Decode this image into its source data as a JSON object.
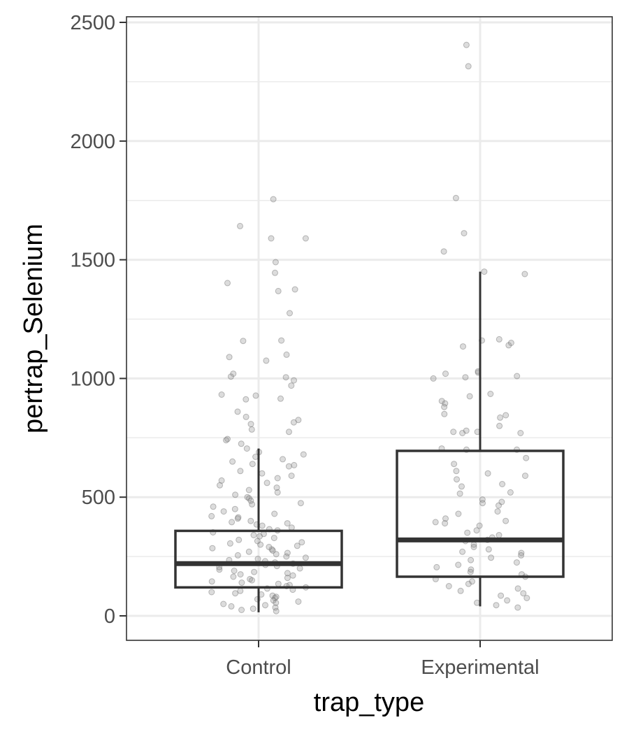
{
  "chart_data": {
    "type": "box",
    "title": "",
    "xlabel": "trap_type",
    "ylabel": "pertrap_Selenium",
    "ylim": [
      -100,
      2530
    ],
    "yticks": [
      0,
      500,
      1000,
      1500,
      2000,
      2500
    ],
    "grid": true,
    "legend": "none",
    "categories": [
      "Control",
      "Experimental"
    ],
    "boxes": [
      {
        "category": "Control",
        "q1": 120,
        "median": 220,
        "q3": 358,
        "whisker_low": 15,
        "whisker_high": 705
      },
      {
        "category": "Experimental",
        "q1": 165,
        "median": 320,
        "q3": 695,
        "whisker_low": 40,
        "whisker_high": 1450
      }
    ],
    "points": [
      {
        "category": "Control",
        "y": [
          1755,
          1642,
          1590,
          1590,
          1490,
          1445,
          1402,
          1375,
          1368,
          1275,
          1160,
          1158,
          1100,
          1090,
          1075,
          1020,
          1008,
          1005,
          992,
          970,
          932,
          928,
          915,
          912,
          860,
          838,
          825,
          815,
          808,
          785,
          775,
          745,
          740,
          725,
          705,
          690,
          680,
          670,
          660,
          650,
          640,
          635,
          630,
          610,
          600,
          590,
          580,
          570,
          560,
          550,
          540,
          530,
          520,
          510,
          500,
          495,
          485,
          475,
          470,
          460,
          450,
          440,
          430,
          420,
          415,
          410,
          400,
          395,
          390,
          385,
          380,
          372,
          365,
          360,
          352,
          345,
          340,
          335,
          328,
          320,
          315,
          310,
          305,
          300,
          295,
          290,
          285,
          280,
          275,
          270,
          265,
          260,
          255,
          250,
          245,
          240,
          235,
          230,
          225,
          220,
          215,
          210,
          205,
          200,
          195,
          190,
          185,
          180,
          175,
          170,
          165,
          160,
          155,
          150,
          145,
          140,
          135,
          130,
          125,
          120,
          115,
          110,
          105,
          100,
          95,
          90,
          85,
          80,
          75,
          70,
          65,
          60,
          55,
          50,
          45,
          40,
          35,
          30,
          25,
          20
        ]
      },
      {
        "category": "Experimental",
        "y": [
          2405,
          2315,
          1760,
          1612,
          1535,
          1450,
          1440,
          1165,
          1160,
          1150,
          1140,
          1135,
          1030,
          1025,
          1020,
          1010,
          1005,
          1000,
          935,
          925,
          905,
          895,
          880,
          850,
          845,
          835,
          800,
          780,
          775,
          775,
          770,
          770,
          705,
          700,
          700,
          665,
          640,
          610,
          600,
          590,
          575,
          555,
          545,
          520,
          515,
          490,
          480,
          475,
          465,
          440,
          430,
          410,
          400,
          395,
          390,
          380,
          360,
          350,
          340,
          330,
          320,
          315,
          300,
          290,
          280,
          270,
          265,
          255,
          245,
          235,
          225,
          215,
          205,
          195,
          185,
          175,
          165,
          155,
          145,
          135,
          125,
          115,
          105,
          95,
          85,
          75,
          65,
          55,
          45,
          35
        ]
      }
    ]
  }
}
